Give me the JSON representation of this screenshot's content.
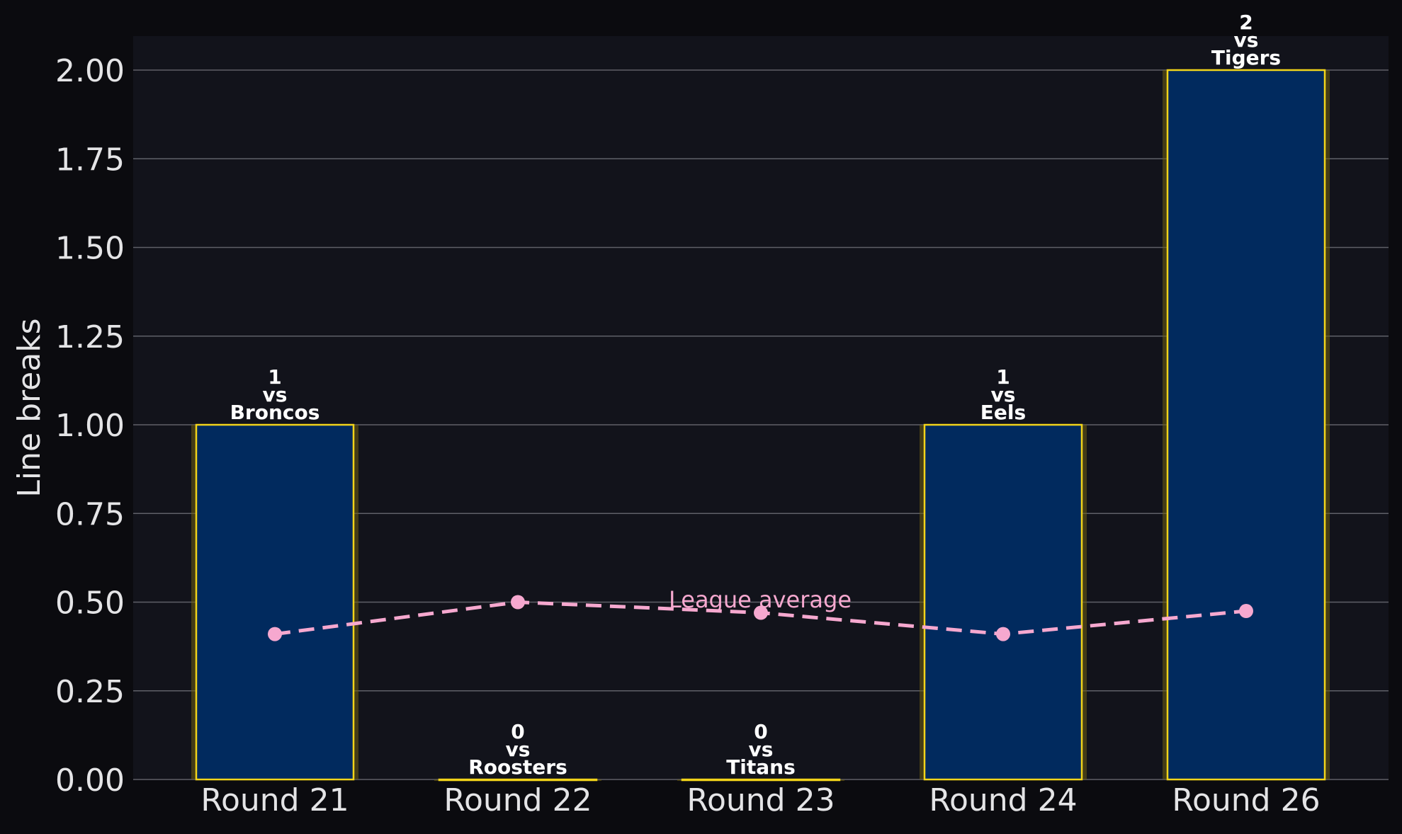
{
  "chart_data": {
    "type": "bar",
    "title": "",
    "xlabel": "",
    "ylabel": "Line breaks",
    "ylim": [
      0,
      2.1
    ],
    "yticks": [
      "0.00",
      "0.25",
      "0.50",
      "0.75",
      "1.00",
      "1.25",
      "1.50",
      "1.75",
      "2.00"
    ],
    "categories": [
      "Round 21",
      "Round 22",
      "Round 23",
      "Round 24",
      "Round 26"
    ],
    "values": [
      1,
      0,
      0,
      1,
      2
    ],
    "opponents": [
      "Broncos",
      "Roosters",
      "Titans",
      "Eels",
      "Tigers"
    ],
    "vs_label": "vs",
    "grid": true,
    "line_series": {
      "name": "League average",
      "values": [
        0.41,
        0.5,
        0.47,
        0.41,
        0.475
      ]
    },
    "colors": {
      "background": "#0b0b0f",
      "plot_background": "#12131b",
      "bar_fill": "#012a5e",
      "bar_edge": "#f2d41a",
      "bar_glow": "#6e5f12",
      "grid": "#5f6068",
      "axis_text": "#e4e4e6",
      "label_text": "#ffffff",
      "average_line": "#f6a8cf"
    }
  }
}
